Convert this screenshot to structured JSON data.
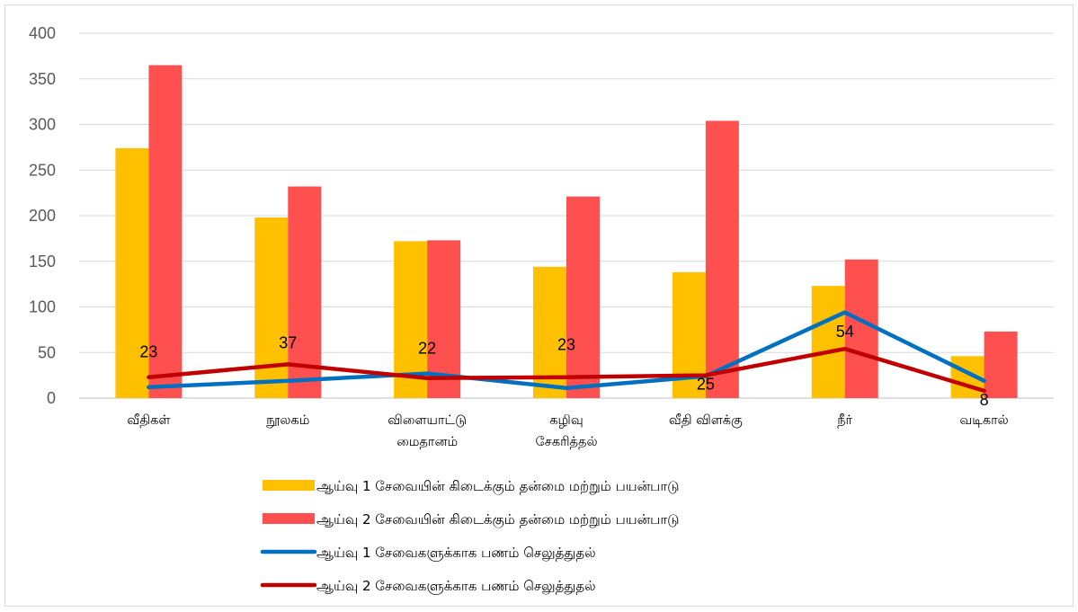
{
  "chart_data": {
    "type": "bar",
    "categories": [
      [
        "வீதிகள்"
      ],
      [
        "நூலகம்"
      ],
      [
        "விளையாட்டு",
        "மைதானம்"
      ],
      [
        "கழிவு",
        "சேகரித்தல்"
      ],
      [
        "வீதி  விளக்கு"
      ],
      [
        "நீர்"
      ],
      [
        "வடிகால்"
      ]
    ],
    "ylim": [
      0,
      400
    ],
    "yticks": [
      0,
      50,
      100,
      150,
      200,
      250,
      300,
      350,
      400
    ],
    "grid": true,
    "legend_position": "bottom",
    "bar_series": [
      {
        "name": "ஆய்வு  1  சேவையின்  கிடைக்கும்  தன்மை  மற்றும்  பயன்பாடு",
        "color": "#FFC000",
        "values": [
          274,
          198,
          172,
          144,
          138,
          123,
          46
        ]
      },
      {
        "name": "ஆய்வு  2  சேவையின்  கிடைக்கும்  தன்மை  மற்றும்  பயன்பாடு",
        "color": "#FF5050",
        "values": [
          365,
          232,
          173,
          221,
          304,
          152,
          73
        ]
      }
    ],
    "line_series": [
      {
        "name": "ஆய்வு  1  சேவைகளுக்காக  பணம்  செலுத்துதல்",
        "color": "#0070C0",
        "values": [
          12,
          19,
          27,
          11,
          24,
          94,
          19
        ],
        "labels": []
      },
      {
        "name": "ஆய்வு  2  சேவைகளுக்காக  பணம்  செலுத்துதல்",
        "color": "#C00000",
        "values": [
          23,
          37,
          22,
          23,
          25,
          54,
          8
        ],
        "labels": [
          "23",
          "37",
          "22",
          "23",
          "25",
          "54",
          "8"
        ]
      }
    ]
  }
}
